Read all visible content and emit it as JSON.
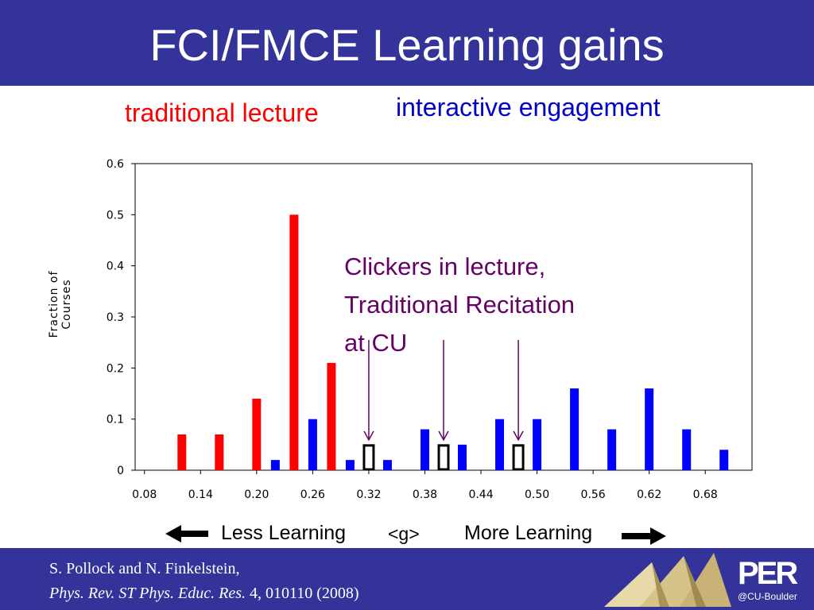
{
  "slide": {
    "title": "FCI/FMCE Learning gains",
    "label_traditional": "traditional lecture",
    "label_interactive": "interactive engagement",
    "annotation_lines": [
      "Clickers in lecture,",
      "Traditional Recitation",
      "at CU"
    ],
    "less_learning": "Less Learning",
    "g_symbol": "<g>",
    "more_learning": "More Learning",
    "citation_line1": "S. Pollock and N. Finkelstein,",
    "citation_journal": "Phys. Rev. ST Phys. Educ. Res.",
    "citation_rest": " 4, 010110 (2008)",
    "logo_text": "PER",
    "logo_subtext": "@CU-Boulder"
  },
  "colors": {
    "title_bar": "#333399",
    "traditional": "#ff0000",
    "interactive": "#0000ff",
    "annotation": "#660066"
  },
  "chart_data": {
    "type": "bar",
    "title": "",
    "xlabel": "",
    "ylabel": "Fraction of Courses",
    "ylim": [
      0,
      0.6
    ],
    "yticks": [
      "0",
      "0.1",
      "0.2",
      "0.3",
      "0.4",
      "0.5",
      "0.6"
    ],
    "xticks": [
      "0.08",
      "0.14",
      "0.20",
      "0.26",
      "0.32",
      "0.38",
      "0.44",
      "0.50",
      "0.56",
      "0.62",
      "0.68"
    ],
    "grid": false,
    "series": [
      {
        "name": "traditional lecture",
        "color": "#ff0000",
        "x": [
          0.12,
          0.16,
          0.2,
          0.24,
          0.28
        ],
        "values": [
          0.07,
          0.07,
          0.14,
          0.5,
          0.21
        ]
      },
      {
        "name": "interactive engagement",
        "color": "#0000ff",
        "x": [
          0.22,
          0.26,
          0.3,
          0.34,
          0.38,
          0.42,
          0.46,
          0.5,
          0.54,
          0.58,
          0.62,
          0.66,
          0.7
        ],
        "values": [
          0.02,
          0.1,
          0.02,
          0.02,
          0.08,
          0.05,
          0.1,
          0.1,
          0.16,
          0.08,
          0.16,
          0.08,
          0.04
        ]
      },
      {
        "name": "Clickers in lecture, Traditional Recitation at CU",
        "color": "#000000",
        "x": [
          0.32,
          0.4,
          0.48
        ],
        "values": [
          0.05,
          0.05,
          0.05
        ]
      }
    ]
  }
}
